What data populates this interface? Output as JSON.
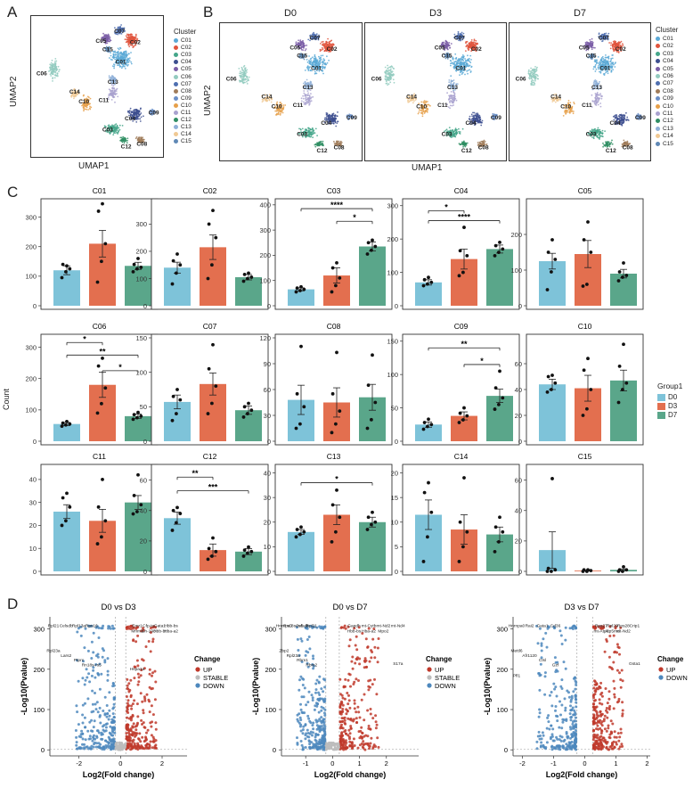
{
  "panels": {
    "a": "A",
    "b": "B",
    "c": "C",
    "d": "D"
  },
  "umap": {
    "xlabel": "UMAP1",
    "ylabel": "UMAP2"
  },
  "cluster_legend": {
    "title": "Cluster",
    "items": [
      {
        "label": "C01",
        "color": "#5aa9d6"
      },
      {
        "label": "C02",
        "color": "#e0553d"
      },
      {
        "label": "C03",
        "color": "#44a68a"
      },
      {
        "label": "C04",
        "color": "#3d4f8f"
      },
      {
        "label": "C05",
        "color": "#7b5ea7"
      },
      {
        "label": "C06",
        "color": "#93cbbf"
      },
      {
        "label": "C07",
        "color": "#4f6fb0"
      },
      {
        "label": "C08",
        "color": "#a07c5a"
      },
      {
        "label": "C09",
        "color": "#6b8fc7"
      },
      {
        "label": "C10",
        "color": "#e6a04a"
      },
      {
        "label": "C11",
        "color": "#a9a2cf"
      },
      {
        "label": "C12",
        "color": "#2f8e63"
      },
      {
        "label": "C13",
        "color": "#8fb0d8"
      },
      {
        "label": "C14",
        "color": "#f0c994"
      },
      {
        "label": "C15",
        "color": "#5f88b5"
      }
    ]
  },
  "umap_titles": [
    "D0",
    "D3",
    "D7"
  ],
  "group_legend": {
    "title": "Group1",
    "items": [
      {
        "label": "D0",
        "color": "#7ec3d9"
      },
      {
        "label": "D3",
        "color": "#e36f4f"
      },
      {
        "label": "D7",
        "color": "#5aa68a"
      }
    ]
  },
  "bar_ylabel": "Count",
  "chart_data": [
    {
      "type": "bar",
      "title": "C01",
      "categories": [
        "D0",
        "D3",
        "D7"
      ],
      "values": [
        120,
        210,
        135
      ],
      "errors": [
        15,
        45,
        12
      ],
      "ylim": [
        0,
        350
      ],
      "yticks": [
        0,
        100,
        200,
        300
      ],
      "points": [
        [
          95,
          115,
          125,
          140,
          135
        ],
        [
          80,
          150,
          210,
          320,
          345
        ],
        [
          115,
          125,
          130,
          140,
          160
        ]
      ],
      "sig": []
    },
    {
      "type": "bar",
      "title": "C02",
      "categories": [
        "D0",
        "D3",
        "D7"
      ],
      "values": [
        140,
        215,
        105
      ],
      "errors": [
        20,
        45,
        10
      ],
      "ylim": [
        0,
        380
      ],
      "yticks": [
        0,
        100,
        200,
        300
      ],
      "points": [
        [
          80,
          120,
          150,
          165,
          190
        ],
        [
          100,
          150,
          250,
          300,
          350
        ],
        [
          90,
          100,
          105,
          115,
          120
        ]
      ],
      "sig": []
    },
    {
      "type": "bar",
      "title": "C03",
      "categories": [
        "D0",
        "D3",
        "D7"
      ],
      "values": [
        65,
        120,
        235
      ],
      "errors": [
        6,
        30,
        18
      ],
      "ylim": [
        0,
        410
      ],
      "yticks": [
        0,
        100,
        200,
        300,
        400
      ],
      "points": [
        [
          55,
          60,
          65,
          70,
          75
        ],
        [
          55,
          80,
          110,
          150,
          170
        ],
        [
          205,
          220,
          235,
          250,
          260
        ]
      ],
      "sig": [
        {
          "from": 0,
          "to": 2,
          "label": "****",
          "y": 385
        },
        {
          "from": 1,
          "to": 2,
          "label": "*",
          "y": 335
        }
      ]
    },
    {
      "type": "bar",
      "title": "C04",
      "categories": [
        "D0",
        "D3",
        "D7"
      ],
      "values": [
        70,
        140,
        170
      ],
      "errors": [
        8,
        30,
        12
      ],
      "ylim": [
        0,
        310
      ],
      "yticks": [
        0,
        100,
        200,
        300
      ],
      "points": [
        [
          60,
          65,
          70,
          78,
          85
        ],
        [
          90,
          100,
          150,
          165,
          235
        ],
        [
          150,
          160,
          170,
          180,
          190
        ]
      ],
      "sig": [
        {
          "from": 0,
          "to": 1,
          "label": "*",
          "y": 285
        },
        {
          "from": 0,
          "to": 2,
          "label": "****",
          "y": 255
        }
      ]
    },
    {
      "type": "bar",
      "title": "C05",
      "categories": [
        "D0",
        "D3",
        "D7"
      ],
      "values": [
        125,
        145,
        90
      ],
      "errors": [
        22,
        38,
        12
      ],
      "ylim": [
        0,
        290
      ],
      "yticks": [
        0,
        100,
        200
      ],
      "points": [
        [
          45,
          95,
          130,
          150,
          185
        ],
        [
          55,
          60,
          150,
          185,
          235
        ],
        [
          70,
          80,
          85,
          95,
          120
        ]
      ],
      "sig": []
    },
    {
      "type": "bar",
      "title": "C06",
      "categories": [
        "D0",
        "D3",
        "D7"
      ],
      "values": [
        55,
        180,
        80
      ],
      "errors": [
        5,
        40,
        7
      ],
      "ylim": [
        0,
        330
      ],
      "yticks": [
        0,
        100,
        200,
        300
      ],
      "points": [
        [
          48,
          52,
          55,
          58,
          63
        ],
        [
          90,
          120,
          170,
          240,
          265
        ],
        [
          70,
          75,
          80,
          85,
          92
        ]
      ],
      "sig": [
        {
          "from": 0,
          "to": 1,
          "label": "*",
          "y": 315
        },
        {
          "from": 0,
          "to": 2,
          "label": "**",
          "y": 275
        },
        {
          "from": 1,
          "to": 2,
          "label": "*",
          "y": 225
        }
      ]
    },
    {
      "type": "bar",
      "title": "C07",
      "categories": [
        "D0",
        "D3",
        "D7"
      ],
      "values": [
        57,
        83,
        45
      ],
      "errors": [
        10,
        16,
        6
      ],
      "ylim": [
        0,
        150
      ],
      "yticks": [
        0,
        50,
        100,
        150
      ],
      "points": [
        [
          30,
          40,
          60,
          65,
          75
        ],
        [
          40,
          55,
          80,
          105,
          140
        ],
        [
          35,
          40,
          45,
          50,
          55
        ]
      ],
      "sig": []
    },
    {
      "type": "bar",
      "title": "C08",
      "categories": [
        "D0",
        "D3",
        "D7"
      ],
      "values": [
        48,
        45,
        51
      ],
      "errors": [
        17,
        17,
        15
      ],
      "ylim": [
        0,
        120
      ],
      "yticks": [
        0,
        30,
        60,
        90,
        120
      ],
      "points": [
        [
          15,
          20,
          40,
          55,
          110
        ],
        [
          10,
          20,
          35,
          55,
          103
        ],
        [
          15,
          25,
          45,
          65,
          100
        ]
      ],
      "sig": []
    },
    {
      "type": "bar",
      "title": "C09",
      "categories": [
        "D0",
        "D3",
        "D7"
      ],
      "values": [
        25,
        38,
        68
      ],
      "errors": [
        4,
        6,
        10
      ],
      "ylim": [
        0,
        155
      ],
      "yticks": [
        0,
        50,
        100,
        150
      ],
      "points": [
        [
          18,
          22,
          25,
          28,
          33
        ],
        [
          28,
          32,
          38,
          42,
          50
        ],
        [
          48,
          55,
          65,
          80,
          105
        ]
      ],
      "sig": [
        {
          "from": 0,
          "to": 2,
          "label": "**",
          "y": 140
        },
        {
          "from": 1,
          "to": 2,
          "label": "*",
          "y": 115
        }
      ]
    },
    {
      "type": "bar",
      "title": "C10",
      "categories": [
        "D0",
        "D3",
        "D7"
      ],
      "values": [
        44,
        41,
        47
      ],
      "errors": [
        4,
        10,
        8
      ],
      "ylim": [
        0,
        80
      ],
      "yticks": [
        0,
        20,
        40,
        60
      ],
      "points": [
        [
          38,
          40,
          45,
          50,
          51
        ],
        [
          20,
          25,
          40,
          55,
          64
        ],
        [
          30,
          40,
          45,
          58,
          75
        ]
      ],
      "sig": []
    },
    {
      "type": "bar",
      "title": "C11",
      "categories": [
        "D0",
        "D3",
        "D7"
      ],
      "values": [
        26,
        22,
        30
      ],
      "errors": [
        3,
        5,
        3
      ],
      "ylim": [
        0,
        45
      ],
      "yticks": [
        0,
        10,
        20,
        30,
        40
      ],
      "points": [
        [
          20,
          22,
          28,
          32,
          34
        ],
        [
          12,
          15,
          22,
          28,
          40
        ],
        [
          25,
          26,
          29,
          33,
          42
        ]
      ],
      "sig": []
    },
    {
      "type": "bar",
      "title": "C12",
      "categories": [
        "D0",
        "D3",
        "D7"
      ],
      "values": [
        35,
        14,
        13
      ],
      "errors": [
        4,
        4,
        2
      ],
      "ylim": [
        0,
        68
      ],
      "yticks": [
        0,
        20,
        40,
        60
      ],
      "points": [
        [
          27,
          32,
          38,
          40,
          42
        ],
        [
          8,
          10,
          13,
          15,
          22
        ],
        [
          10,
          12,
          13,
          14,
          16
        ]
      ],
      "sig": [
        {
          "from": 0,
          "to": 1,
          "label": "**",
          "y": 62
        },
        {
          "from": 0,
          "to": 2,
          "label": "***",
          "y": 53
        }
      ]
    },
    {
      "type": "bar",
      "title": "C13",
      "categories": [
        "D0",
        "D3",
        "D7"
      ],
      "values": [
        16,
        23,
        20
      ],
      "errors": [
        1,
        4,
        2
      ],
      "ylim": [
        0,
        42
      ],
      "yticks": [
        0,
        10,
        20,
        30,
        40
      ],
      "points": [
        [
          14,
          15,
          16,
          17,
          18
        ],
        [
          12,
          16,
          22,
          27,
          33
        ],
        [
          17,
          19,
          20,
          22,
          24
        ]
      ],
      "sig": [
        {
          "from": 0,
          "to": 2,
          "label": "*",
          "y": 36
        }
      ]
    },
    {
      "type": "bar",
      "title": "C14",
      "categories": [
        "D0",
        "D3",
        "D7"
      ],
      "values": [
        11.5,
        8.5,
        7.5
      ],
      "errors": [
        3,
        3,
        1.5
      ],
      "ylim": [
        0,
        21
      ],
      "yticks": [
        0,
        5,
        10,
        15,
        20
      ],
      "points": [
        [
          2,
          7,
          12,
          16,
          18
        ],
        [
          2,
          5,
          8,
          10,
          19
        ],
        [
          4,
          6,
          8,
          9,
          11
        ]
      ],
      "sig": []
    },
    {
      "type": "bar",
      "title": "C15",
      "categories": [
        "D0",
        "D3",
        "D7"
      ],
      "values": [
        14,
        0.5,
        1
      ],
      "errors": [
        12,
        0.2,
        0.6
      ],
      "ylim": [
        0,
        68
      ],
      "yticks": [
        0,
        20,
        40,
        60
      ],
      "points": [
        [
          0,
          0,
          1,
          2,
          61
        ],
        [
          0,
          0,
          0.5,
          1,
          1
        ],
        [
          0,
          0,
          1,
          1,
          3
        ]
      ],
      "sig": []
    }
  ],
  "volcano": {
    "xlabel": "Log2(Fold change)",
    "ylabel": "-Log10(Pvalue)",
    "legend_title": "Change",
    "up_label": "UP",
    "stable_label": "STABLE",
    "down_label": "DOWN",
    "plots": [
      {
        "title": "D0 vs D3",
        "xlim": [
          -3.4,
          3.2
        ],
        "xticks": [
          -2,
          0,
          2
        ],
        "ylim": [
          -15,
          330
        ],
        "yticks": [
          0,
          100,
          200,
          300
        ],
        "up_genes": [
          "Emr1",
          "Cfp-to",
          "Gata1",
          "Hbb-bs",
          "Mnm3",
          "Gh-193",
          "Hbb-bt",
          "Hba-a2",
          "Hspa1a"
        ],
        "down_genes": [
          "Rpl21",
          "Celsdb",
          "Rpl13a",
          "Rps16",
          "Rpl23a",
          "Lars2",
          "Ptprc",
          "Rn18s-rs5"
        ],
        "stable": true
      },
      {
        "title": "D0 vs D7",
        "xlim": [
          -1.9,
          3.2
        ],
        "xticks": [
          -1,
          0,
          1,
          2
        ],
        "ylim": [
          -15,
          330
        ],
        "yticks": [
          0,
          100,
          200,
          300
        ],
        "up_genes": [
          "Gapdh",
          "mt-Cytb",
          "mt-Nd2",
          "mt-Nd4",
          "Hbb-bs",
          "Hba-a2",
          "Mpo2",
          "S17a"
        ],
        "down_genes": [
          "Hnrnpa0",
          "Rn18s-rs5",
          "Celsdb",
          "Rpl21",
          "Zbp2",
          "Rpl23a",
          "Rbm1",
          "Rbm2"
        ],
        "stable": true
      },
      {
        "title": "D3 vs D7",
        "xlim": [
          -2.3,
          2.1
        ],
        "xticks": [
          -2,
          -1,
          0,
          1,
          2
        ],
        "ylim": [
          -15,
          330
        ],
        "yticks": [
          0,
          100,
          200,
          300
        ],
        "up_genes": [
          "Rps27",
          "Rpl29",
          "Rps28",
          "Crip1",
          "mt-Atp6",
          "Atp5md",
          "mt-Nd2",
          "Gsta1"
        ],
        "down_genes": [
          "Hnrnpa0",
          "Rai2",
          "Gata1",
          "Cd36",
          "Mettl6",
          "Afr1120",
          "Ctsl",
          "Gzf",
          "Pfl1"
        ],
        "stable": false
      }
    ]
  }
}
